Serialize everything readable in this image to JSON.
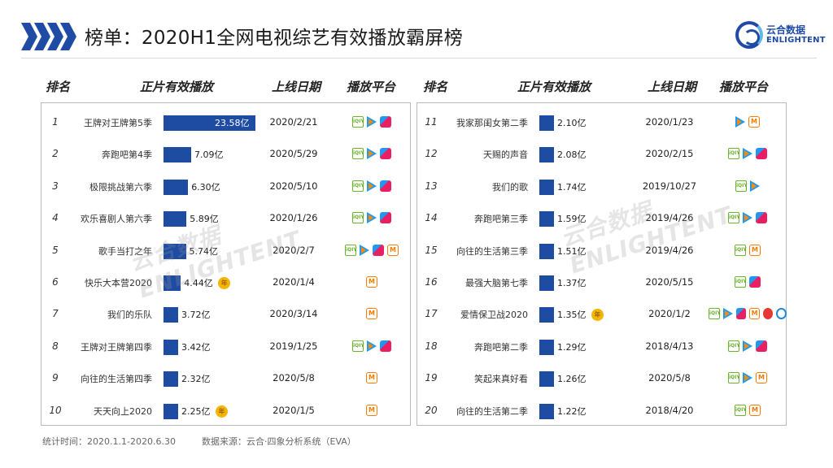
{
  "header": {
    "title": "榜单：2020H1全网电视综艺有效播放霸屏榜"
  },
  "logo": {
    "cn": "云合数据",
    "en": "ENLIGHTENT"
  },
  "columns": {
    "left": {
      "rank": "排名",
      "name": "正片有效播放",
      "date": "上线日期",
      "platform": "播放平台"
    },
    "right": {
      "rank": "排名",
      "name": "正片有效播放",
      "date": "上线日期",
      "platform": "播放平台"
    }
  },
  "watermark": {
    "cn": "云合数据",
    "en": "ENLIGHTENT"
  },
  "footer": {
    "period": "统计时间：2020.1.1-2020.6.30",
    "source": "数据来源：云合·四象分析系统（EVA）"
  },
  "badge_label": "年",
  "platform_icons": {
    "iqiyi": "iqiyi-icon",
    "tencent": "tencent-video-icon",
    "youku": "youku-icon",
    "mango": "mango-tv-icon",
    "sohu": "sohu-video-icon",
    "pptv": "pptv-icon"
  },
  "colors": {
    "bar": "#1e4ca3",
    "badge": "#f4b400",
    "title_accent": "#1f4ba5"
  },
  "chart_data": {
    "type": "bar",
    "unit": "亿",
    "xlim": [
      0,
      23.58
    ],
    "rows": [
      {
        "rank": "1",
        "name": "王牌对王牌第5季",
        "value": 23.58,
        "label": "23.58亿",
        "date": "2020/2/21",
        "platforms": [
          "iqiyi",
          "tencent",
          "youku"
        ],
        "badge": false
      },
      {
        "rank": "2",
        "name": "奔跑吧第4季",
        "value": 7.09,
        "label": "7.09亿",
        "date": "2020/5/29",
        "platforms": [
          "iqiyi",
          "tencent",
          "youku"
        ],
        "badge": false
      },
      {
        "rank": "3",
        "name": "极限挑战第六季",
        "value": 6.3,
        "label": "6.30亿",
        "date": "2020/5/10",
        "platforms": [
          "iqiyi",
          "tencent",
          "youku"
        ],
        "badge": false
      },
      {
        "rank": "4",
        "name": "欢乐喜剧人第六季",
        "value": 5.89,
        "label": "5.89亿",
        "date": "2020/1/26",
        "platforms": [
          "iqiyi",
          "tencent",
          "youku"
        ],
        "badge": false
      },
      {
        "rank": "5",
        "name": "歌手当打之年",
        "value": 5.74,
        "label": "5.74亿",
        "date": "2020/2/7",
        "platforms": [
          "iqiyi",
          "tencent",
          "youku",
          "mango"
        ],
        "badge": false
      },
      {
        "rank": "6",
        "name": "快乐大本营2020",
        "value": 4.44,
        "label": "4.44亿",
        "date": "2020/1/4",
        "platforms": [
          "mango"
        ],
        "badge": true
      },
      {
        "rank": "7",
        "name": "我们的乐队",
        "value": 3.72,
        "label": "3.72亿",
        "date": "2020/3/14",
        "platforms": [
          "mango"
        ],
        "badge": false
      },
      {
        "rank": "8",
        "name": "王牌对王牌第四季",
        "value": 3.42,
        "label": "3.42亿",
        "date": "2019/1/25",
        "platforms": [
          "iqiyi",
          "tencent",
          "youku"
        ],
        "badge": false
      },
      {
        "rank": "9",
        "name": "向往的生活第四季",
        "value": 2.32,
        "label": "2.32亿",
        "date": "2020/5/8",
        "platforms": [
          "mango"
        ],
        "badge": false
      },
      {
        "rank": "10",
        "name": "天天向上2020",
        "value": 2.25,
        "label": "2.25亿",
        "date": "2020/1/5",
        "platforms": [
          "mango"
        ],
        "badge": true
      },
      {
        "rank": "11",
        "name": "我家那闺女第二季",
        "value": 2.1,
        "label": "2.10亿",
        "date": "2020/1/23",
        "platforms": [
          "tencent",
          "mango"
        ],
        "badge": false
      },
      {
        "rank": "12",
        "name": "天赐的声音",
        "value": 2.08,
        "label": "2.08亿",
        "date": "2020/2/15",
        "platforms": [
          "iqiyi",
          "tencent",
          "youku"
        ],
        "badge": false
      },
      {
        "rank": "13",
        "name": "我们的歌",
        "value": 1.74,
        "label": "1.74亿",
        "date": "2019/10/27",
        "platforms": [
          "iqiyi",
          "tencent"
        ],
        "badge": false
      },
      {
        "rank": "14",
        "name": "奔跑吧第三季",
        "value": 1.59,
        "label": "1.59亿",
        "date": "2019/4/26",
        "platforms": [
          "iqiyi",
          "tencent",
          "youku"
        ],
        "badge": false
      },
      {
        "rank": "15",
        "name": "向往的生活第三季",
        "value": 1.51,
        "label": "1.51亿",
        "date": "2019/4/26",
        "platforms": [
          "iqiyi",
          "mango"
        ],
        "badge": false
      },
      {
        "rank": "16",
        "name": "最强大脑第七季",
        "value": 1.37,
        "label": "1.37亿",
        "date": "2020/5/15",
        "platforms": [
          "iqiyi",
          "youku"
        ],
        "badge": false
      },
      {
        "rank": "17",
        "name": "爱情保卫战2020",
        "value": 1.35,
        "label": "1.35亿",
        "date": "2020/1/2",
        "platforms": [
          "iqiyi",
          "tencent",
          "youku",
          "mango",
          "sohu",
          "pptv"
        ],
        "badge": true
      },
      {
        "rank": "18",
        "name": "奔跑吧第二季",
        "value": 1.29,
        "label": "1.29亿",
        "date": "2018/4/13",
        "platforms": [
          "iqiyi",
          "tencent",
          "youku"
        ],
        "badge": false
      },
      {
        "rank": "19",
        "name": "笑起来真好看",
        "value": 1.26,
        "label": "1.26亿",
        "date": "2020/5/8",
        "platforms": [
          "iqiyi",
          "tencent",
          "mango"
        ],
        "badge": false
      },
      {
        "rank": "20",
        "name": "向往的生活第二季",
        "value": 1.22,
        "label": "1.22亿",
        "date": "2018/4/20",
        "platforms": [
          "iqiyi",
          "mango"
        ],
        "badge": false
      }
    ]
  }
}
